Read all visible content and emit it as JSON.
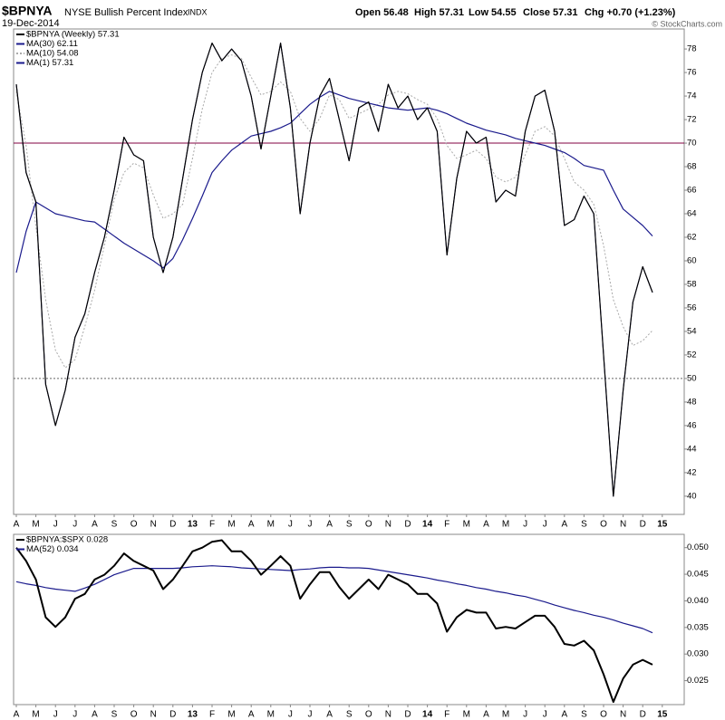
{
  "header": {
    "symbol": "$BPNYA",
    "name": "NYSE Bullish Percent Index",
    "exchange": "INDX",
    "date": "19-Dec-2014",
    "quote": [
      "Open 56.48",
      "High 57.31",
      "Low 54.55",
      "Close 57.31",
      "Chg +0.70 (+1.23%)"
    ],
    "watermark": "© StockCharts.com"
  },
  "chart_data": [
    {
      "type": "line",
      "categories": [
        "A",
        null,
        "M",
        null,
        "J",
        null,
        "J",
        null,
        "A",
        null,
        "S",
        null,
        "O",
        null,
        "N",
        null,
        "D",
        null,
        "13",
        null,
        "F",
        null,
        "M",
        null,
        "A",
        null,
        "M",
        null,
        "J",
        null,
        "J",
        null,
        "A",
        null,
        "S",
        null,
        "O",
        null,
        "N",
        null,
        "D",
        null,
        "14",
        null,
        "F",
        null,
        "M",
        null,
        "A",
        null,
        "M",
        null,
        "J",
        null,
        "J",
        null,
        "A",
        null,
        "S",
        null,
        "O",
        null,
        "N",
        null,
        "D",
        null,
        "15"
      ],
      "series": [
        {
          "name": "$BPNYA (Weekly) 57.31",
          "color": "#000000",
          "style": "solid",
          "values": [
            75,
            67.5,
            65,
            49.5,
            46,
            49,
            53.5,
            55.5,
            59,
            62,
            66,
            70.5,
            69,
            68.5,
            62,
            59,
            62,
            67,
            72,
            76,
            78.5,
            77,
            78,
            77,
            74,
            69.5,
            74,
            78.5,
            73,
            64,
            70,
            74,
            75.5,
            72,
            68.5,
            73,
            73.5,
            71,
            75,
            73,
            74,
            72,
            73,
            71,
            60.5,
            67,
            71,
            70,
            70.5,
            65,
            66,
            65.5,
            71,
            74,
            74.5,
            71,
            63,
            63.5,
            65.5,
            64,
            52,
            40,
            49,
            56.5,
            59.5,
            57.31,
            null
          ]
        },
        {
          "name": "MA(30) 62.11",
          "color": "#1a1a8c",
          "style": "solid",
          "values": [
            59,
            62.5,
            65,
            64.5,
            64,
            63.8,
            63.6,
            63.4,
            63.3,
            62.7,
            62.1,
            61.5,
            61,
            60.5,
            60,
            59.4,
            60.2,
            61.8,
            63.6,
            65.5,
            67.5,
            68.5,
            69.4,
            70,
            70.6,
            70.8,
            71,
            71.3,
            71.7,
            72.5,
            73.3,
            73.9,
            74.4,
            74.1,
            73.8,
            73.6,
            73.4,
            73.2,
            73,
            72.9,
            72.8,
            72.9,
            73,
            72.8,
            72.5,
            72.1,
            71.7,
            71.4,
            71.1,
            70.9,
            70.7,
            70.4,
            70.2,
            70,
            69.8,
            69.5,
            69.2,
            68.7,
            68.1,
            67.9,
            67.7,
            66,
            64.4,
            63.7,
            63,
            62.11,
            null
          ]
        },
        {
          "name": "MA(10) 54.08",
          "color": "#aaaaaa",
          "style": "dotted",
          "values": [
            74.4,
            69.8,
            62.9,
            56.7,
            52.4,
            50.9,
            51.6,
            54.4,
            57.5,
            61.3,
            65.2,
            67.5,
            68.3,
            67.9,
            65.6,
            63.6,
            64,
            64.8,
            68.7,
            72.9,
            76,
            77.2,
            77.5,
            77.2,
            75.6,
            74.1,
            74.4,
            75.2,
            74.4,
            72.1,
            71,
            72.1,
            74.1,
            73.7,
            72.1,
            72.5,
            72.9,
            73.3,
            74.1,
            74.4,
            74.2,
            73.7,
            73.3,
            72.1,
            69.8,
            68.7,
            69,
            69.4,
            68.7,
            67.1,
            66.7,
            67.1,
            69,
            71,
            71.4,
            70.6,
            68.7,
            66.7,
            66,
            64.8,
            61.3,
            56.7,
            54.4,
            52.8,
            53.2,
            54.08,
            null
          ]
        },
        {
          "name": "MA(1) 57.31",
          "color": "#1a1a8c",
          "style": "thin",
          "values": [
            75,
            67.5,
            65,
            49.5,
            46,
            49,
            53.5,
            55.5,
            59,
            62,
            66,
            70.5,
            69,
            68.5,
            62,
            59,
            62,
            67,
            72,
            76,
            78.5,
            77,
            78,
            77,
            74,
            69.5,
            74,
            78.5,
            73,
            64,
            70,
            74,
            75.5,
            72,
            68.5,
            73,
            73.5,
            71,
            75,
            73,
            74,
            72,
            73,
            71,
            60.5,
            67,
            71,
            70,
            70.5,
            65,
            66,
            65.5,
            71,
            74,
            74.5,
            71,
            63,
            63.5,
            65.5,
            64,
            52,
            40,
            49,
            56.5,
            59.5,
            57.31,
            null
          ]
        }
      ],
      "ylim": [
        38.45,
        79.7
      ],
      "yticks": [
        40,
        42,
        44,
        46,
        48,
        50,
        52,
        54,
        56,
        58,
        60,
        62,
        64,
        66,
        68,
        70,
        72,
        74,
        76,
        78
      ],
      "hlines": [
        {
          "value": 70,
          "color": "#800040",
          "style": "solid"
        },
        {
          "value": 50,
          "color": "#666666",
          "style": "dotted"
        }
      ]
    },
    {
      "type": "line",
      "categories": [
        "A",
        null,
        "M",
        null,
        "J",
        null,
        "J",
        null,
        "A",
        null,
        "S",
        null,
        "O",
        null,
        "N",
        null,
        "D",
        null,
        "13",
        null,
        "F",
        null,
        "M",
        null,
        "A",
        null,
        "M",
        null,
        "J",
        null,
        "J",
        null,
        "A",
        null,
        "S",
        null,
        "O",
        null,
        "N",
        null,
        "D",
        null,
        "14",
        null,
        "F",
        null,
        "M",
        null,
        "A",
        null,
        "M",
        null,
        "J",
        null,
        "J",
        null,
        "A",
        null,
        "S",
        null,
        "O",
        null,
        "N",
        null,
        "D",
        null,
        "15"
      ],
      "series": [
        {
          "name": "$BPNYA:$SPX 0.028",
          "color": "#000000",
          "style": "thick",
          "values": [
            0.05,
            0.0475,
            0.044,
            0.0369,
            0.0351,
            0.0369,
            0.0404,
            0.0413,
            0.044,
            0.0449,
            0.0466,
            0.0489,
            0.0475,
            0.0466,
            0.0457,
            0.0422,
            0.044,
            0.0466,
            0.0493,
            0.05,
            0.0511,
            0.0514,
            0.0493,
            0.0493,
            0.0475,
            0.0449,
            0.0466,
            0.0484,
            0.0466,
            0.0404,
            0.0431,
            0.0454,
            0.0454,
            0.0426,
            0.0404,
            0.0422,
            0.044,
            0.0422,
            0.0449,
            0.044,
            0.0431,
            0.0413,
            0.0413,
            0.0395,
            0.0342,
            0.0369,
            0.0383,
            0.0378,
            0.0378,
            0.0348,
            0.0351,
            0.0348,
            0.036,
            0.0372,
            0.0372,
            0.0351,
            0.0319,
            0.0316,
            0.0325,
            0.0307,
            0.0262,
            0.021,
            0.0254,
            0.028,
            0.0289,
            0.028,
            null
          ]
        },
        {
          "name": "MA(52) 0.034",
          "color": "#1a1a8c",
          "style": "solid",
          "values": [
            0.0436,
            0.0432,
            0.0429,
            0.0425,
            0.0422,
            0.042,
            0.0418,
            0.0424,
            0.0431,
            0.044,
            0.0449,
            0.0455,
            0.0461,
            0.0461,
            0.0461,
            0.0461,
            0.0461,
            0.0462,
            0.0464,
            0.0465,
            0.0466,
            0.0465,
            0.0464,
            0.0462,
            0.0461,
            0.046,
            0.0459,
            0.0458,
            0.0457,
            0.0459,
            0.046,
            0.0462,
            0.0463,
            0.0463,
            0.0462,
            0.0462,
            0.0461,
            0.0458,
            0.0455,
            0.0452,
            0.0449,
            0.0446,
            0.0443,
            0.0439,
            0.0436,
            0.0432,
            0.0429,
            0.0425,
            0.0422,
            0.0418,
            0.0415,
            0.0411,
            0.0408,
            0.0403,
            0.0398,
            0.0392,
            0.0387,
            0.0382,
            0.0378,
            0.0373,
            0.0369,
            0.0364,
            0.0358,
            0.0353,
            0.0348,
            0.034,
            null
          ]
        }
      ],
      "ylim": [
        0.0205,
        0.0525
      ],
      "yticks": [
        {
          "value": 0.025,
          "label": "0.025"
        },
        {
          "value": 0.03,
          "label": "0.030"
        },
        {
          "value": 0.035,
          "label": "0.035"
        },
        {
          "value": 0.04,
          "label": "0.040"
        },
        {
          "value": 0.045,
          "label": "0.045"
        },
        {
          "value": 0.05,
          "label": "0.050"
        }
      ]
    }
  ]
}
